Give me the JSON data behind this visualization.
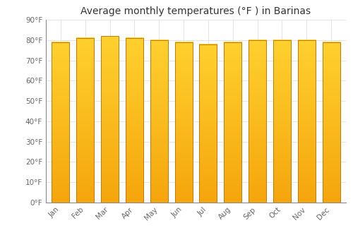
{
  "title": "Average monthly temperatures (°F ) in Barinas",
  "months": [
    "Jan",
    "Feb",
    "Mar",
    "Apr",
    "May",
    "Jun",
    "Jul",
    "Aug",
    "Sep",
    "Oct",
    "Nov",
    "Dec"
  ],
  "values": [
    79,
    81,
    82,
    81,
    80,
    79,
    78,
    79,
    80,
    80,
    80,
    79
  ],
  "bar_color_top": "#F5A800",
  "bar_color_bottom": "#FFD040",
  "bar_edge_color": "#C87800",
  "background_color": "#FFFFFF",
  "plot_bg_color": "#FFFFFF",
  "grid_color": "#DDDDEE",
  "yticks": [
    0,
    10,
    20,
    30,
    40,
    50,
    60,
    70,
    80,
    90
  ],
  "ytick_labels": [
    "0°F",
    "10°F",
    "20°F",
    "30°F",
    "40°F",
    "50°F",
    "60°F",
    "70°F",
    "80°F",
    "90°F"
  ],
  "ylim": [
    0,
    90
  ],
  "title_fontsize": 10,
  "tick_fontsize": 7.5,
  "bar_width": 0.72
}
